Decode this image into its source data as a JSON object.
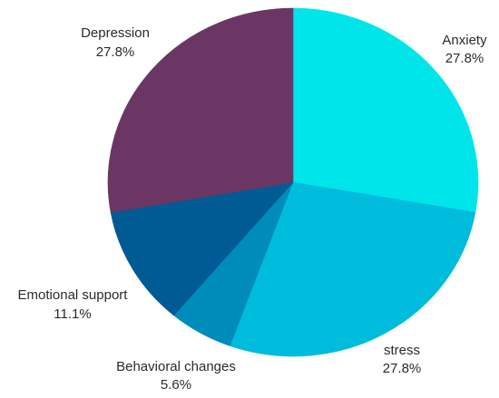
{
  "chart_data": {
    "type": "pie",
    "start_angle_deg": 0,
    "direction": "clockwise",
    "slices": [
      {
        "label": "Anxiety",
        "value": 27.8,
        "value_text": "27.8%",
        "color": "#00e5ea"
      },
      {
        "label": "stress",
        "value": 27.8,
        "value_text": "27.8%",
        "color": "#00bcdc"
      },
      {
        "label": "Behavioral changes",
        "value": 5.6,
        "value_text": "5.6%",
        "color": "#008cbb"
      },
      {
        "label": "Emotional support",
        "value": 11.1,
        "value_text": "11.1%",
        "color": "#005b95"
      },
      {
        "label": "Depression",
        "value": 27.8,
        "value_text": "27.8%",
        "color": "#6b3663"
      }
    ]
  }
}
